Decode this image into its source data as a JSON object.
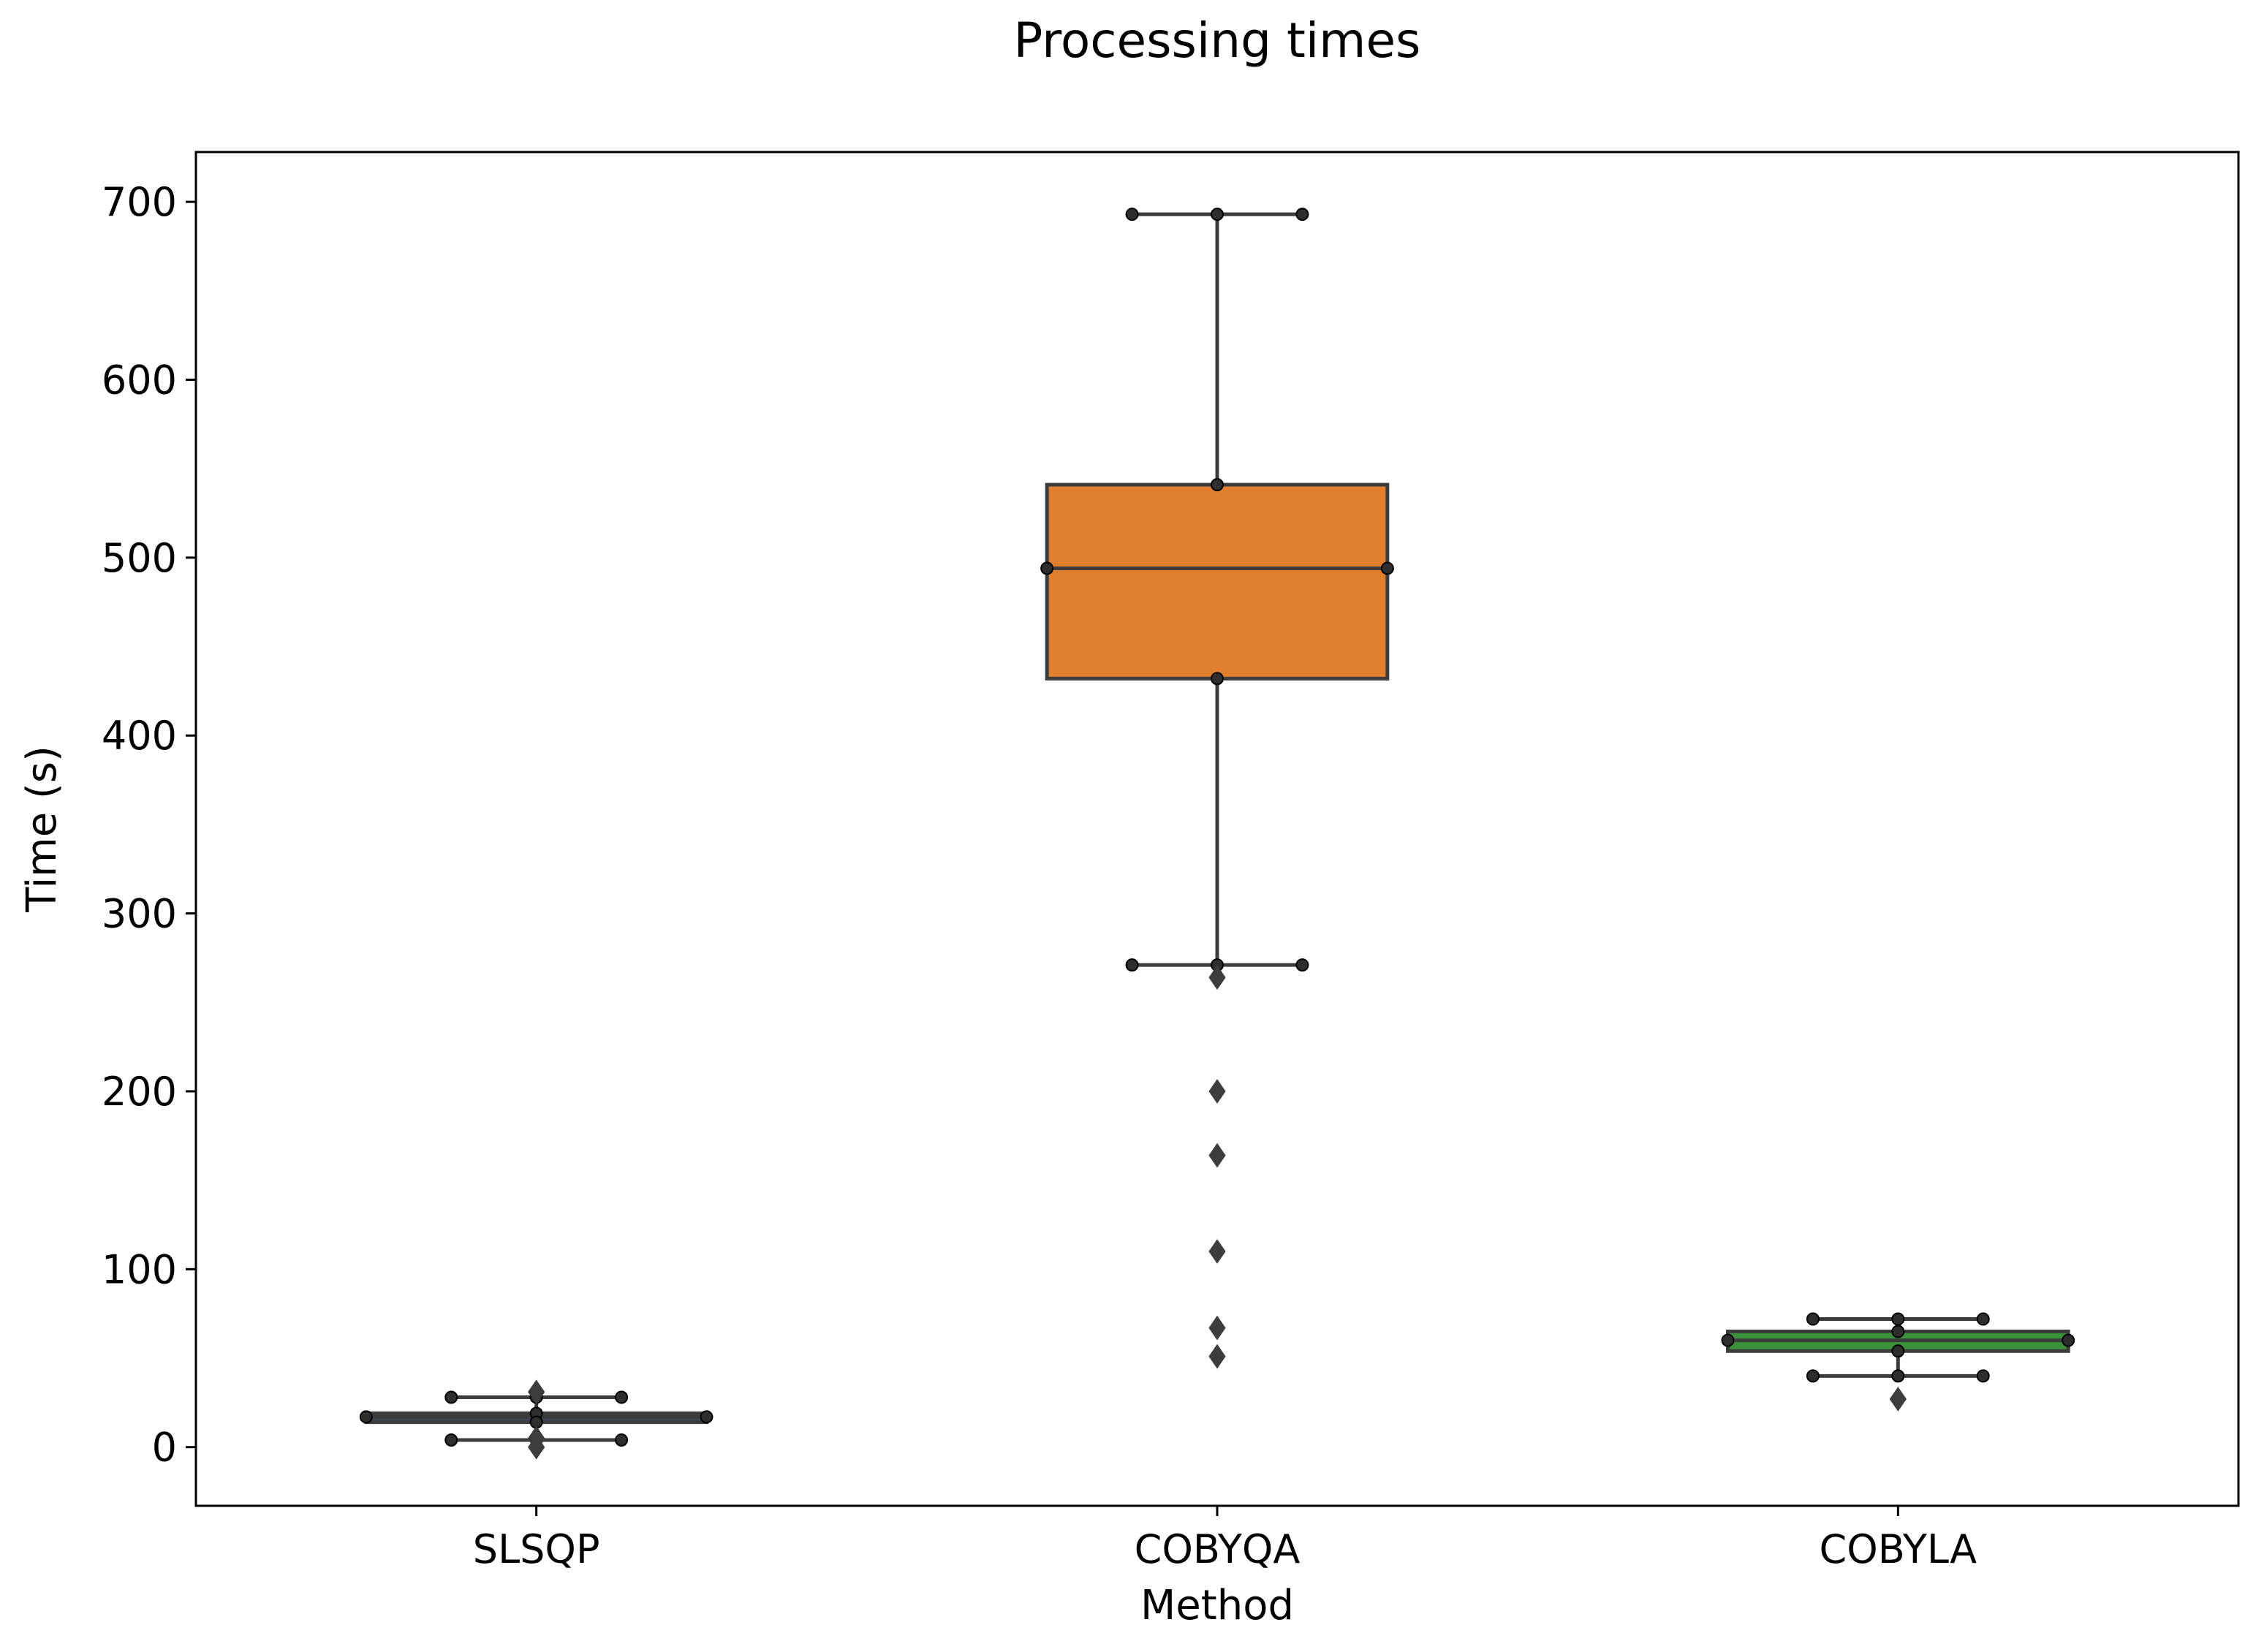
{
  "chart_data": {
    "type": "box",
    "title": "Processing times",
    "xlabel": "Method",
    "ylabel": "Time (s)",
    "ylim": [
      -33,
      728
    ],
    "yticks": [
      0,
      100,
      200,
      300,
      400,
      500,
      600,
      700
    ],
    "grid": false,
    "categories": [
      "SLSQP",
      "COBYQA",
      "COBYLA"
    ],
    "boxes": [
      {
        "name": "SLSQP",
        "color": "#3a4a5c",
        "whisker_low": 4,
        "q1": 14,
        "median": 17,
        "q3": 19,
        "whisker_high": 28,
        "outliers": [
          0,
          5,
          31
        ]
      },
      {
        "name": "COBYQA",
        "color": "#e0802e",
        "whisker_low": 271,
        "q1": 432,
        "median": 494,
        "q3": 541,
        "whisker_high": 693,
        "outliers": [
          264,
          200,
          164,
          110,
          67,
          51
        ]
      },
      {
        "name": "COBYLA",
        "color": "#3a923a",
        "whisker_low": 40,
        "q1": 54,
        "median": 60,
        "q3": 65,
        "whisker_high": 72,
        "outliers": [
          27
        ]
      }
    ]
  }
}
